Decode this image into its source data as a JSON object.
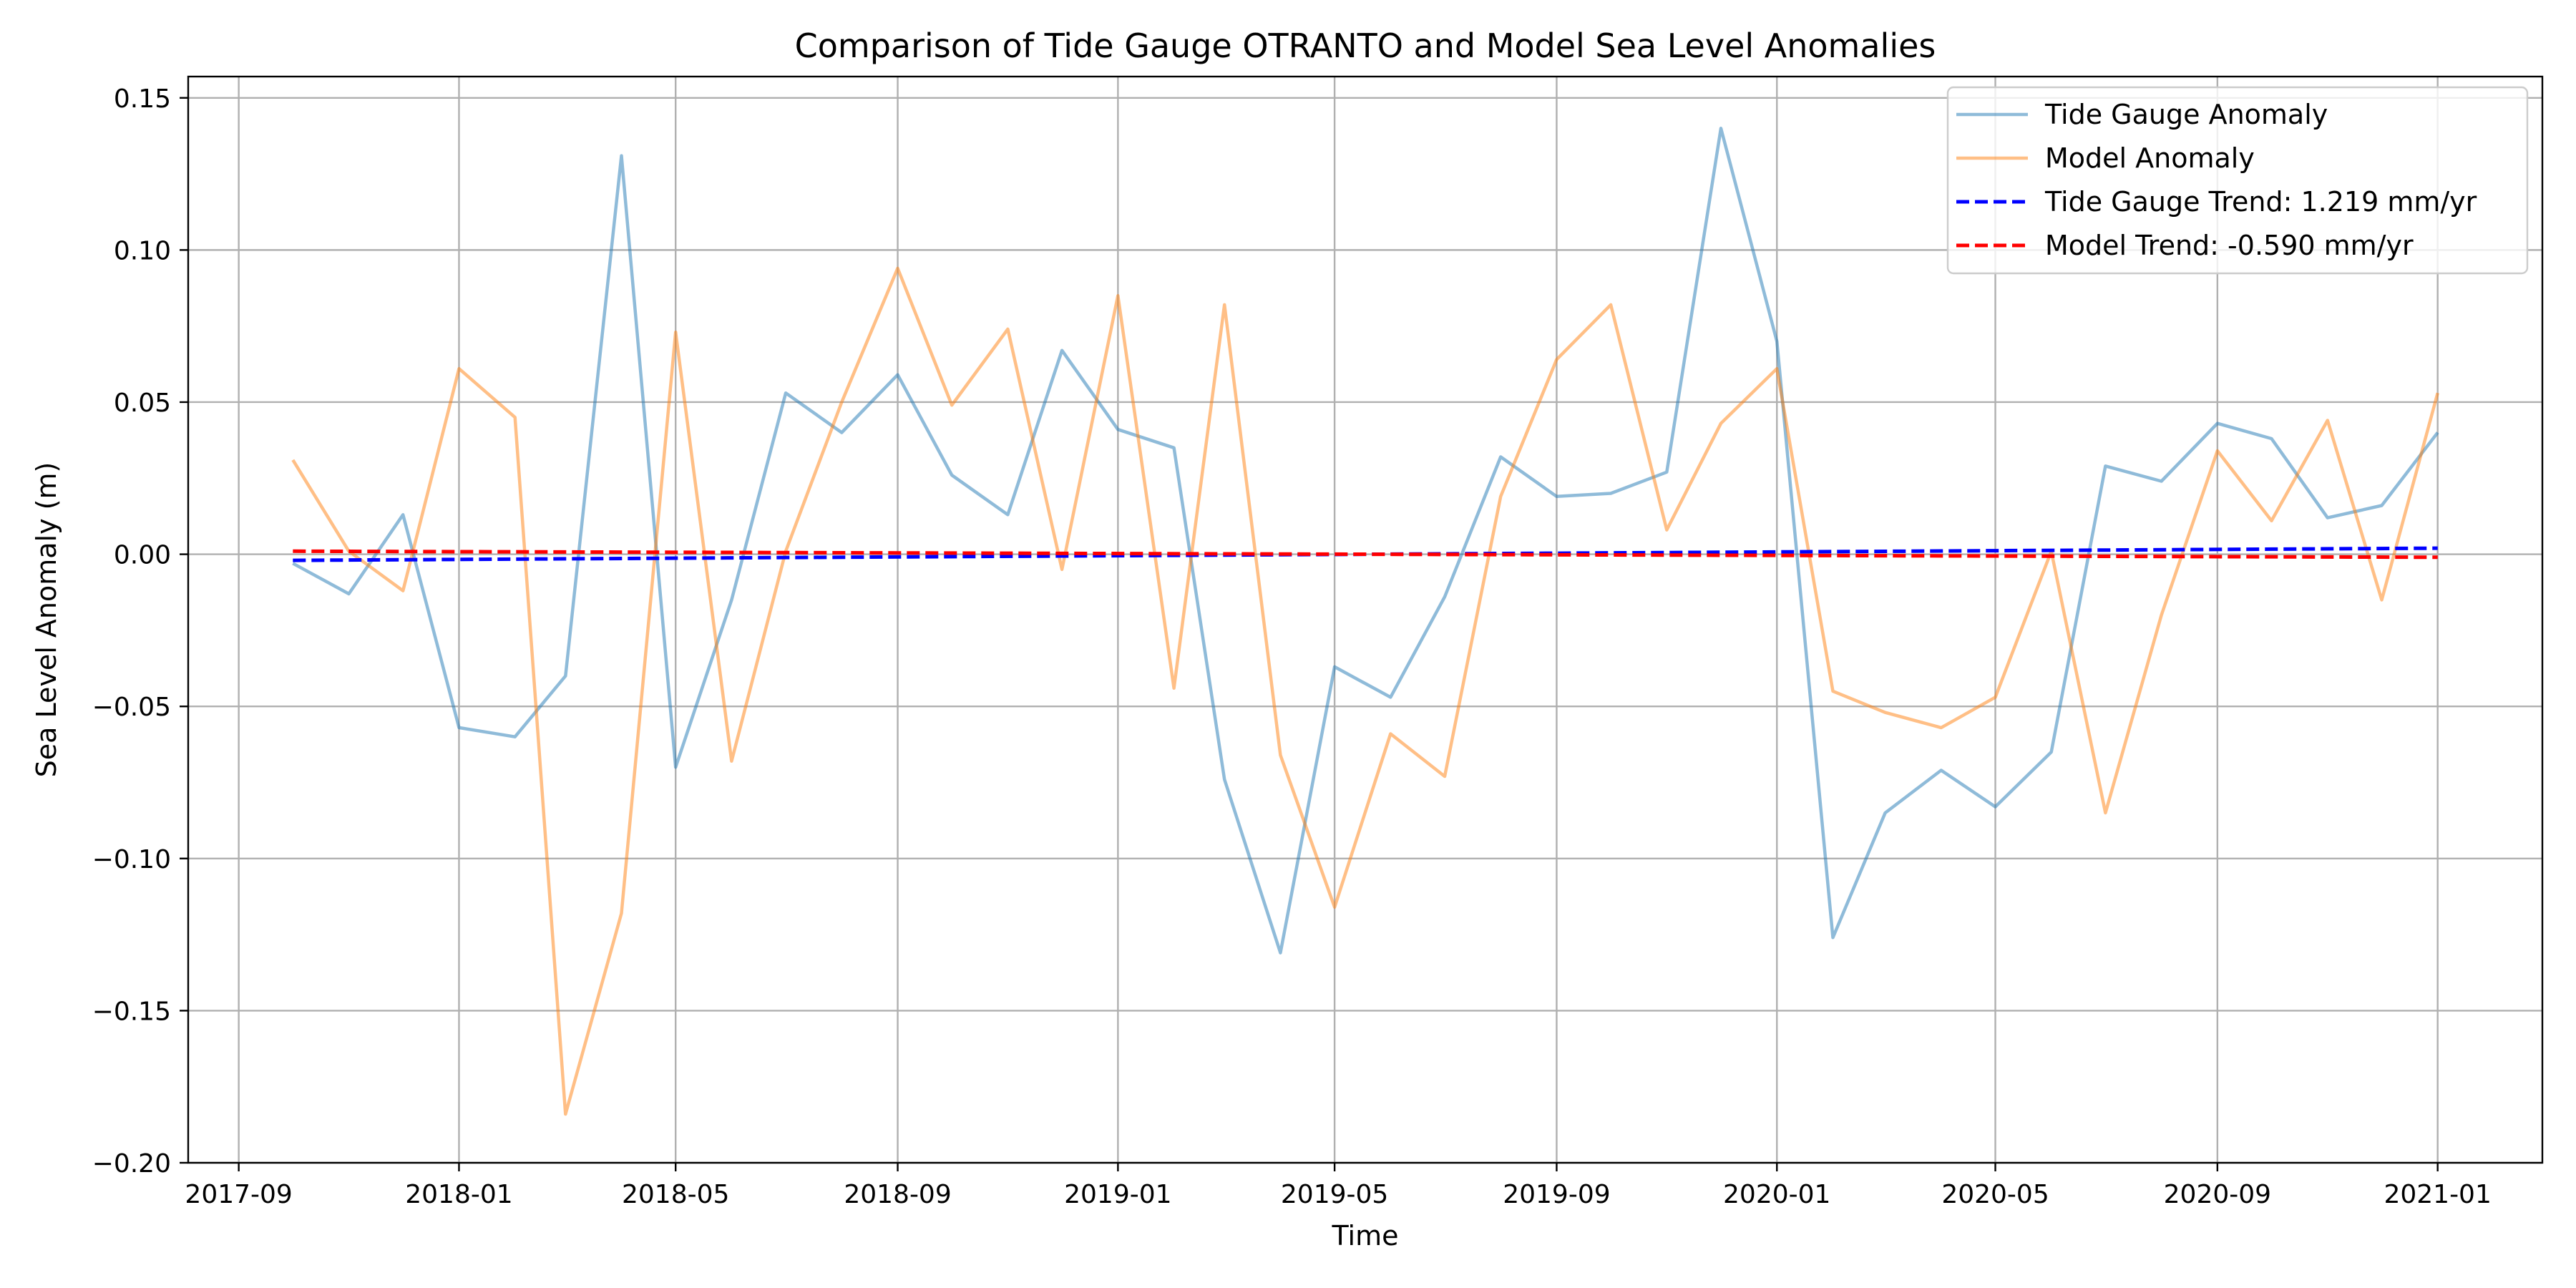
{
  "chart_data": {
    "type": "line",
    "title": "Comparison of Tide Gauge OTRANTO and Model Sea Level Anomalies",
    "xlabel": "Time",
    "ylabel": "Sea Level Anomaly (m)",
    "grid": true,
    "legend_position": "top-right",
    "xlim": [
      "2017-08-04",
      "2021-02-28"
    ],
    "ylim": [
      -0.2,
      0.157
    ],
    "x_ticks": [
      "2017-09",
      "2018-01",
      "2018-05",
      "2018-09",
      "2019-01",
      "2019-05",
      "2019-09",
      "2020-01",
      "2020-05",
      "2020-09",
      "2021-01"
    ],
    "y_ticks": [
      -0.2,
      -0.15,
      -0.1,
      -0.05,
      0.0,
      0.05,
      0.1,
      0.15
    ],
    "y_tick_labels": [
      "−0.20",
      "−0.15",
      "−0.10",
      "−0.05",
      "0.00",
      "0.05",
      "0.10",
      "0.15"
    ],
    "x": [
      "2017-10-01",
      "2017-11-01",
      "2017-12-01",
      "2018-01-01",
      "2018-02-01",
      "2018-03-01",
      "2018-04-01",
      "2018-05-01",
      "2018-06-01",
      "2018-07-01",
      "2018-08-01",
      "2018-09-01",
      "2018-10-01",
      "2018-11-01",
      "2018-12-01",
      "2019-01-01",
      "2019-02-01",
      "2019-03-01",
      "2019-04-01",
      "2019-05-01",
      "2019-06-01",
      "2019-07-01",
      "2019-08-01",
      "2019-09-01",
      "2019-10-01",
      "2019-11-01",
      "2019-12-01",
      "2020-01-01",
      "2020-02-01",
      "2020-03-01",
      "2020-04-01",
      "2020-05-01",
      "2020-06-01",
      "2020-07-01",
      "2020-08-01",
      "2020-09-01",
      "2020-10-01",
      "2020-11-01",
      "2020-12-01",
      "2021-01-01"
    ],
    "series": [
      {
        "name": "Tide Gauge Anomaly",
        "color": "#1f77b4",
        "opacity": 0.5,
        "style": "solid",
        "values": [
          -0.003,
          -0.013,
          0.013,
          -0.057,
          -0.06,
          -0.04,
          0.131,
          -0.07,
          -0.015,
          0.053,
          0.04,
          0.059,
          0.026,
          0.013,
          0.067,
          0.041,
          0.035,
          -0.074,
          -0.131,
          -0.037,
          -0.047,
          -0.014,
          0.032,
          0.019,
          0.02,
          0.027,
          0.14,
          0.07,
          -0.126,
          -0.085,
          -0.071,
          -0.083,
          -0.065,
          0.029,
          0.024,
          0.043,
          0.038,
          0.012,
          0.016,
          0.04
        ]
      },
      {
        "name": "Model Anomaly",
        "color": "#ff7f0e",
        "opacity": 0.5,
        "style": "solid",
        "values": [
          0.031,
          0.001,
          -0.012,
          0.061,
          0.045,
          -0.184,
          -0.118,
          0.073,
          -0.068,
          0.001,
          0.05,
          0.094,
          0.049,
          0.074,
          -0.005,
          0.085,
          -0.044,
          0.082,
          -0.066,
          -0.116,
          -0.059,
          -0.073,
          0.019,
          0.064,
          0.082,
          0.008,
          0.043,
          0.061,
          -0.045,
          -0.052,
          -0.057,
          -0.047,
          0.001,
          -0.085,
          -0.02,
          0.034,
          0.011,
          0.044,
          -0.015,
          0.053
        ]
      },
      {
        "name": "Tide Gauge Trend: 1.219 mm/yr",
        "color": "#0000ff",
        "opacity": 1,
        "style": "dashed",
        "x": [
          "2017-10-01",
          "2021-01-01"
        ],
        "values": [
          -0.002,
          0.002
        ]
      },
      {
        "name": "Model Trend: -0.590 mm/yr",
        "color": "#ff0000",
        "opacity": 1,
        "style": "dashed",
        "x": [
          "2017-10-01",
          "2021-01-01"
        ],
        "values": [
          0.001,
          -0.001
        ]
      }
    ]
  }
}
